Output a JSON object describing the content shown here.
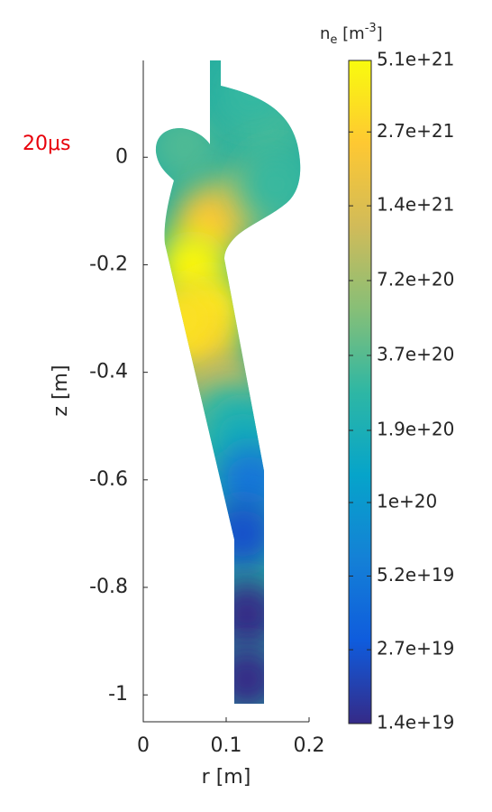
{
  "chart_data": {
    "type": "field",
    "annotation": "20μs",
    "xlabel": "r [m]",
    "ylabel": "z [m]",
    "xlim": [
      0,
      0.2
    ],
    "ylim": [
      -1.05,
      0.18
    ],
    "xticks": [
      0,
      0.1,
      0.2
    ],
    "yticks": [
      -1,
      -0.8,
      -0.6,
      -0.4,
      -0.2,
      0
    ],
    "x": [
      0.15,
      0.05,
      0.12,
      0.08,
      0.06,
      0.08,
      0.07,
      0.09,
      0.1,
      0.12,
      0.13,
      0.12,
      0.125,
      0.125,
      0.13,
      0.16,
      0.045
    ],
    "y": [
      0.05,
      0.02,
      -0.08,
      -0.12,
      -0.2,
      -0.28,
      -0.34,
      -0.42,
      -0.48,
      -0.52,
      -0.6,
      -0.7,
      -0.85,
      -0.97,
      0.12,
      -0.05,
      -0.3
    ],
    "values": [
      3.2e+20,
      3.5e+20,
      6e+20,
      2.2e+21,
      4.8e+21,
      4e+21,
      3e+21,
      1.2e+21,
      3e+20,
      1.8e+20,
      5e+19,
      2.5e+19,
      1.4e+19,
      1.4e+19,
      2.8e+20,
      2.9e+20,
      3.5e+21
    ],
    "colorbar": {
      "label": {
        "base": "n",
        "sub": "e",
        "unit": " [m",
        "sup": "-3",
        "end": "]"
      },
      "scale": "log",
      "clim": [
        1.4e+19,
        5.1e+21
      ],
      "ticks": [
        {
          "value": 5.1e+21,
          "label": "5.1e+21"
        },
        {
          "value": 2.7e+21,
          "label": "2.7e+21"
        },
        {
          "value": 1.4e+21,
          "label": "1.4e+21"
        },
        {
          "value": 7.2e+20,
          "label": "7.2e+20"
        },
        {
          "value": 3.7e+20,
          "label": "3.7e+20"
        },
        {
          "value": 1.9e+20,
          "label": "1.9e+20"
        },
        {
          "value": 1e+20,
          "label": "1e+20"
        },
        {
          "value": 5.2e+19,
          "label": "5.2e+19"
        },
        {
          "value": 2.7e+19,
          "label": "2.7e+19"
        },
        {
          "value": 1.4e+19,
          "label": "1.4e+19"
        }
      ],
      "colormap": [
        "#352a87",
        "#0f5cdd",
        "#1481d6",
        "#06a4ca",
        "#2eb7a4",
        "#87bf77",
        "#d1bb59",
        "#fec832",
        "#f9fb0e"
      ]
    },
    "annotation_color": "#e8000b"
  }
}
